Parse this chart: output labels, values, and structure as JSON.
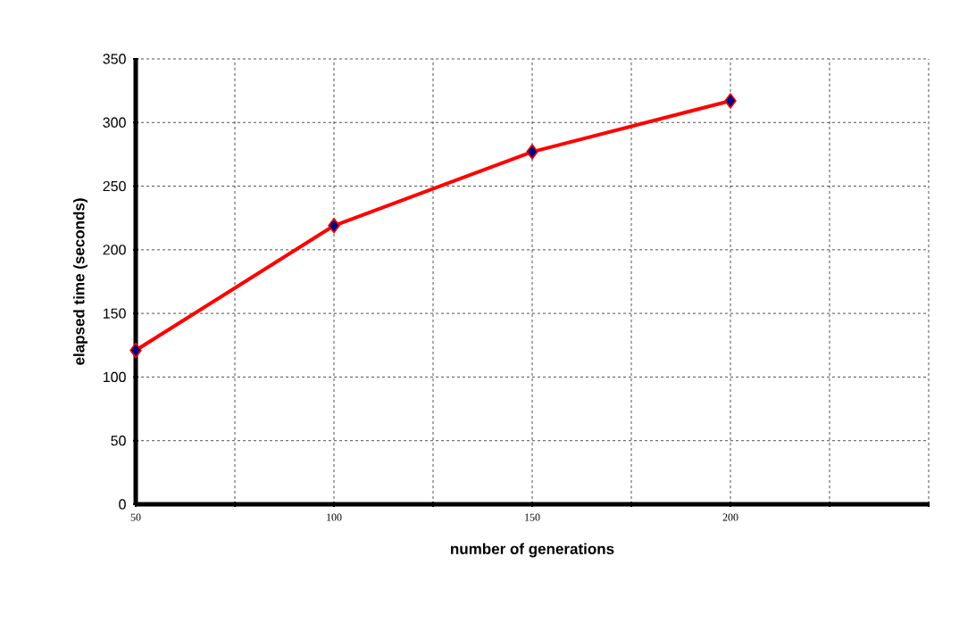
{
  "chart_data": {
    "type": "line",
    "xlabel": "number of generations",
    "ylabel": "elapsed time (seconds)",
    "x": [
      50,
      100,
      150,
      200
    ],
    "series": [
      {
        "color": "#ff0000",
        "values": [
          121,
          219,
          277,
          317
        ]
      }
    ],
    "xlim": [
      50,
      250
    ],
    "xticks": [
      50,
      {
        "value": 75,
        "label": null
      },
      100,
      {
        "value": 125,
        "label": null
      },
      150,
      {
        "value": 175,
        "label": null
      },
      200,
      {
        "value": 225,
        "label": null
      },
      {
        "value": 250,
        "label": null
      }
    ],
    "ylim": [
      0,
      350
    ],
    "yticks": [
      0,
      50,
      100,
      150,
      200,
      250,
      300,
      350
    ],
    "grid": true,
    "marker": "diamond",
    "line_style": "solid"
  }
}
